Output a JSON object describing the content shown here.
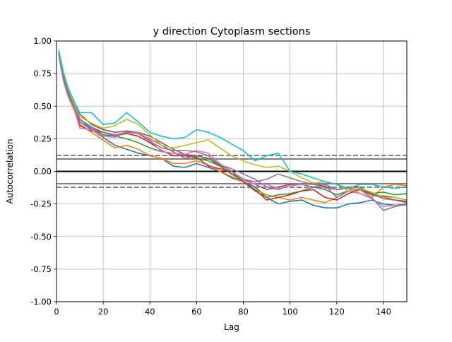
{
  "chart_data": {
    "type": "line",
    "title": "y direction Cytoplasm sections",
    "xlabel": "Lag",
    "ylabel": "Autocorrelation",
    "xlim": [
      0,
      150
    ],
    "ylim": [
      -1.0,
      1.0
    ],
    "xticks": [
      0,
      20,
      40,
      60,
      80,
      100,
      120,
      140
    ],
    "yticks": [
      -1.0,
      -0.75,
      -0.5,
      -0.25,
      0.0,
      0.25,
      0.5,
      0.75,
      1.0
    ],
    "grid": true,
    "reference_lines": [
      {
        "y": 0.0,
        "color": "#000000",
        "style": "solid"
      },
      {
        "y": 0.095,
        "color": "#808080",
        "style": "solid"
      },
      {
        "y": -0.095,
        "color": "#808080",
        "style": "solid"
      },
      {
        "y": 0.122,
        "color": "#808080",
        "style": "dashed"
      },
      {
        "y": -0.122,
        "color": "#808080",
        "style": "dashed"
      }
    ],
    "series": [
      {
        "color": "#1f77b4",
        "x": [
          1,
          3,
          5,
          8,
          10,
          15,
          20,
          25,
          30,
          35,
          40,
          45,
          50,
          55,
          60,
          65,
          70,
          75,
          80,
          85,
          90,
          95,
          100,
          105,
          110,
          115,
          120,
          125,
          130,
          135,
          140,
          145,
          150
        ],
        "y": [
          0.91,
          0.72,
          0.6,
          0.48,
          0.38,
          0.32,
          0.26,
          0.2,
          0.17,
          0.14,
          0.12,
          0.1,
          0.04,
          0.03,
          0.06,
          0.03,
          0.0,
          -0.05,
          -0.08,
          -0.12,
          -0.2,
          -0.25,
          -0.23,
          -0.22,
          -0.26,
          -0.28,
          -0.28,
          -0.25,
          -0.24,
          -0.22,
          -0.25,
          -0.26,
          -0.25
        ]
      },
      {
        "color": "#ff7f0e",
        "x": [
          1,
          3,
          5,
          8,
          10,
          15,
          20,
          25,
          30,
          35,
          40,
          45,
          50,
          55,
          60,
          65,
          70,
          75,
          80,
          85,
          90,
          95,
          100,
          105,
          110,
          115,
          120,
          125,
          130,
          135,
          140,
          145,
          150
        ],
        "y": [
          0.9,
          0.7,
          0.58,
          0.45,
          0.36,
          0.3,
          0.24,
          0.18,
          0.2,
          0.17,
          0.12,
          0.1,
          0.06,
          0.06,
          0.08,
          0.05,
          0.0,
          -0.04,
          -0.08,
          -0.14,
          -0.18,
          -0.2,
          -0.22,
          -0.2,
          -0.22,
          -0.24,
          -0.2,
          -0.15,
          -0.17,
          -0.2,
          -0.12,
          -0.1,
          -0.11
        ]
      },
      {
        "color": "#2ca02c",
        "x": [
          1,
          3,
          5,
          8,
          10,
          15,
          20,
          25,
          30,
          35,
          40,
          45,
          50,
          55,
          60,
          65,
          70,
          75,
          80,
          85,
          90,
          95,
          100,
          105,
          110,
          115,
          120,
          125,
          130,
          135,
          140,
          145,
          150
        ],
        "y": [
          0.92,
          0.73,
          0.61,
          0.48,
          0.4,
          0.33,
          0.28,
          0.27,
          0.25,
          0.22,
          0.18,
          0.15,
          0.14,
          0.12,
          0.1,
          0.08,
          0.04,
          -0.02,
          -0.08,
          -0.15,
          -0.2,
          -0.18,
          -0.17,
          -0.15,
          -0.12,
          -0.14,
          -0.18,
          -0.15,
          -0.13,
          -0.17,
          -0.16,
          -0.18,
          -0.17
        ]
      },
      {
        "color": "#d62728",
        "x": [
          1,
          3,
          5,
          8,
          10,
          15,
          20,
          25,
          30,
          35,
          40,
          45,
          50,
          55,
          60,
          65,
          70,
          75,
          80,
          85,
          90,
          95,
          100,
          105,
          110,
          115,
          120,
          125,
          130,
          135,
          140,
          145,
          150
        ],
        "y": [
          0.91,
          0.7,
          0.6,
          0.47,
          0.35,
          0.31,
          0.3,
          0.27,
          0.29,
          0.27,
          0.22,
          0.16,
          0.12,
          0.12,
          0.11,
          0.04,
          0.02,
          0.0,
          -0.08,
          -0.14,
          -0.22,
          -0.2,
          -0.18,
          -0.15,
          -0.14,
          -0.2,
          -0.22,
          -0.17,
          -0.14,
          -0.18,
          -0.19,
          -0.2,
          -0.22
        ]
      },
      {
        "color": "#9467bd",
        "x": [
          1,
          3,
          5,
          8,
          10,
          15,
          20,
          25,
          30,
          35,
          40,
          45,
          50,
          55,
          60,
          65,
          70,
          75,
          80,
          85,
          90,
          95,
          100,
          105,
          110,
          115,
          120,
          125,
          130,
          135,
          140,
          145,
          150
        ],
        "y": [
          0.9,
          0.72,
          0.6,
          0.47,
          0.38,
          0.33,
          0.3,
          0.28,
          0.3,
          0.29,
          0.25,
          0.2,
          0.15,
          0.1,
          0.12,
          0.1,
          0.05,
          0.02,
          -0.02,
          -0.06,
          -0.12,
          -0.14,
          -0.11,
          -0.1,
          -0.12,
          -0.11,
          -0.2,
          -0.15,
          -0.14,
          -0.17,
          -0.21,
          -0.22,
          -0.24
        ]
      },
      {
        "color": "#8c564b",
        "x": [
          1,
          3,
          5,
          8,
          10,
          15,
          20,
          25,
          30,
          35,
          40,
          45,
          50,
          55,
          60,
          65,
          70,
          75,
          80,
          85,
          90,
          95,
          100,
          105,
          110,
          115,
          120,
          125,
          130,
          135,
          140,
          145,
          150
        ],
        "y": [
          0.9,
          0.74,
          0.62,
          0.52,
          0.44,
          0.36,
          0.32,
          0.3,
          0.31,
          0.3,
          0.27,
          0.22,
          0.17,
          0.13,
          0.12,
          0.1,
          0.04,
          -0.02,
          -0.06,
          -0.1,
          -0.14,
          -0.12,
          -0.1,
          -0.1,
          -0.09,
          -0.12,
          -0.14,
          -0.12,
          -0.12,
          -0.18,
          -0.2,
          -0.22,
          -0.23
        ]
      },
      {
        "color": "#e377c2",
        "x": [
          1,
          3,
          5,
          8,
          10,
          15,
          20,
          25,
          30,
          35,
          40,
          45,
          50,
          55,
          60,
          65,
          70,
          75,
          80,
          85,
          90,
          95,
          100,
          105,
          110,
          115,
          120,
          125,
          130,
          135,
          140,
          145,
          150
        ],
        "y": [
          0.88,
          0.69,
          0.57,
          0.45,
          0.33,
          0.32,
          0.27,
          0.26,
          0.3,
          0.3,
          0.24,
          0.15,
          0.14,
          0.13,
          0.16,
          0.14,
          0.06,
          0.0,
          -0.07,
          -0.1,
          -0.1,
          -0.13,
          -0.11,
          -0.1,
          -0.1,
          -0.13,
          -0.14,
          -0.13,
          -0.17,
          -0.21,
          -0.27,
          -0.26,
          -0.26
        ]
      },
      {
        "color": "#7f7f7f",
        "x": [
          1,
          3,
          5,
          8,
          10,
          15,
          20,
          25,
          30,
          35,
          40,
          45,
          50,
          55,
          60,
          65,
          70,
          75,
          80,
          85,
          90,
          95,
          100,
          105,
          110,
          115,
          120,
          125,
          130,
          135,
          140,
          145,
          150
        ],
        "y": [
          0.9,
          0.71,
          0.59,
          0.48,
          0.4,
          0.34,
          0.3,
          0.27,
          0.3,
          0.29,
          0.23,
          0.18,
          0.16,
          0.16,
          0.15,
          0.12,
          0.05,
          0.0,
          -0.06,
          -0.08,
          -0.06,
          -0.02,
          -0.05,
          -0.08,
          -0.1,
          -0.1,
          -0.14,
          -0.13,
          -0.14,
          -0.2,
          -0.3,
          -0.27,
          -0.25
        ]
      },
      {
        "color": "#bcbd22",
        "x": [
          1,
          3,
          5,
          8,
          10,
          15,
          20,
          25,
          30,
          35,
          40,
          45,
          50,
          55,
          60,
          65,
          70,
          75,
          80,
          85,
          90,
          95,
          100,
          105,
          110,
          115,
          120,
          125,
          130,
          135,
          140,
          145,
          150
        ],
        "y": [
          0.92,
          0.75,
          0.63,
          0.5,
          0.42,
          0.37,
          0.33,
          0.35,
          0.4,
          0.36,
          0.28,
          0.2,
          0.18,
          0.2,
          0.22,
          0.24,
          0.18,
          0.12,
          0.08,
          0.05,
          0.03,
          0.04,
          0.0,
          -0.05,
          -0.09,
          -0.08,
          -0.1,
          -0.15,
          -0.13,
          -0.16,
          -0.2,
          -0.2,
          -0.22
        ]
      },
      {
        "color": "#17becf",
        "x": [
          1,
          3,
          5,
          8,
          10,
          15,
          20,
          25,
          30,
          35,
          40,
          45,
          50,
          55,
          60,
          65,
          70,
          75,
          80,
          85,
          90,
          95,
          100,
          105,
          110,
          115,
          120,
          125,
          130,
          135,
          140,
          145,
          150
        ],
        "y": [
          0.93,
          0.76,
          0.64,
          0.52,
          0.45,
          0.45,
          0.36,
          0.37,
          0.45,
          0.38,
          0.3,
          0.27,
          0.25,
          0.26,
          0.32,
          0.3,
          0.26,
          0.21,
          0.16,
          0.08,
          0.12,
          0.14,
          0.0,
          -0.02,
          -0.05,
          -0.08,
          -0.1,
          -0.13,
          -0.1,
          -0.1,
          -0.12,
          -0.13,
          -0.12
        ]
      }
    ]
  }
}
